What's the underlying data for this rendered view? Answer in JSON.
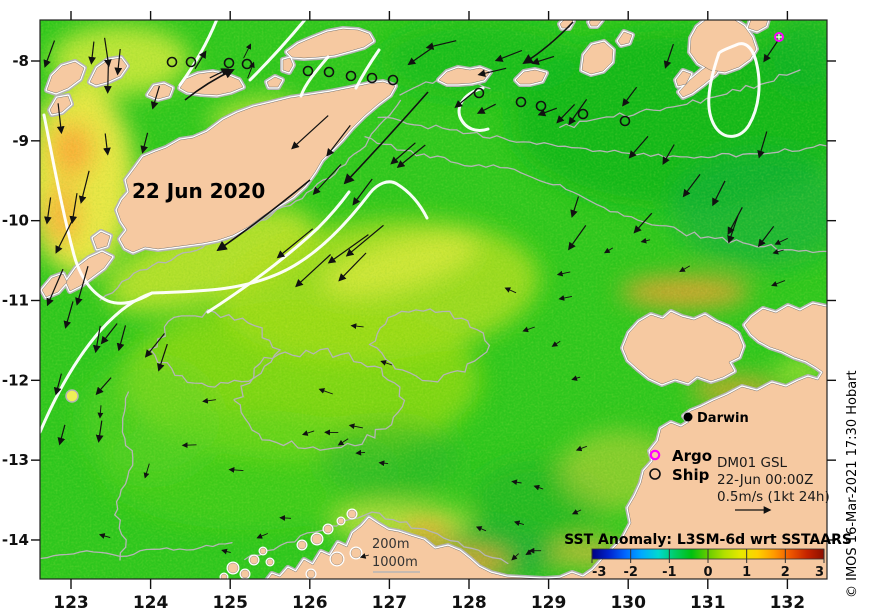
{
  "header": {
    "date_label": "22 Jun 2020"
  },
  "axes": {
    "lon_ticks": [
      "123",
      "124",
      "125",
      "126",
      "127",
      "128",
      "129",
      "130",
      "131",
      "132"
    ],
    "lat_ticks": [
      "-8",
      "-9",
      "-10",
      "-11",
      "-12",
      "-13",
      "-14"
    ]
  },
  "city": {
    "name": "Darwin"
  },
  "legend": {
    "argo_label": "Argo",
    "ship_label": "Ship",
    "lines": [
      "DM01 GSL",
      "22-Jun 00:00Z",
      "0.5m/s (1kt 24h)"
    ]
  },
  "isobaths": {
    "line1": "200m",
    "line2": "1000m"
  },
  "colorbar": {
    "title": "SST Anomaly: L3SM-6d wrt SSTAARS",
    "tick_labels": [
      "-3",
      "-2",
      "-1",
      "0",
      "1",
      "2",
      "3"
    ],
    "gradient": [
      "#000080",
      "#0022cc",
      "#0066ff",
      "#00aaff",
      "#00d9d0",
      "#00cc66",
      "#00c010",
      "#66cc00",
      "#b3e000",
      "#e8e800",
      "#ffd000",
      "#ff9900",
      "#ee5500",
      "#c42200",
      "#8b0f00"
    ]
  },
  "attribution": "© IMOS 16-Mar-2021 17:30 Hobart",
  "observations": {
    "ships": [
      [
        172,
        62
      ],
      [
        191,
        62
      ],
      [
        229,
        63
      ],
      [
        247,
        64
      ],
      [
        308,
        71
      ],
      [
        329,
        72
      ],
      [
        351,
        76
      ],
      [
        372,
        78
      ],
      [
        393,
        80
      ],
      [
        479,
        93
      ],
      [
        521,
        102
      ],
      [
        541,
        106
      ],
      [
        583,
        114
      ],
      [
        625,
        121
      ]
    ],
    "argo": [
      779,
      37
    ]
  },
  "colors": {
    "ocean": "#2fc81e",
    "land": "#f6c9a1",
    "coast": "#ffffff",
    "bathy": "#b5b5b5",
    "gsl_contour": "#ffffff",
    "vector": "#111111",
    "argo": "#ff00ff",
    "ship": "#111111"
  }
}
